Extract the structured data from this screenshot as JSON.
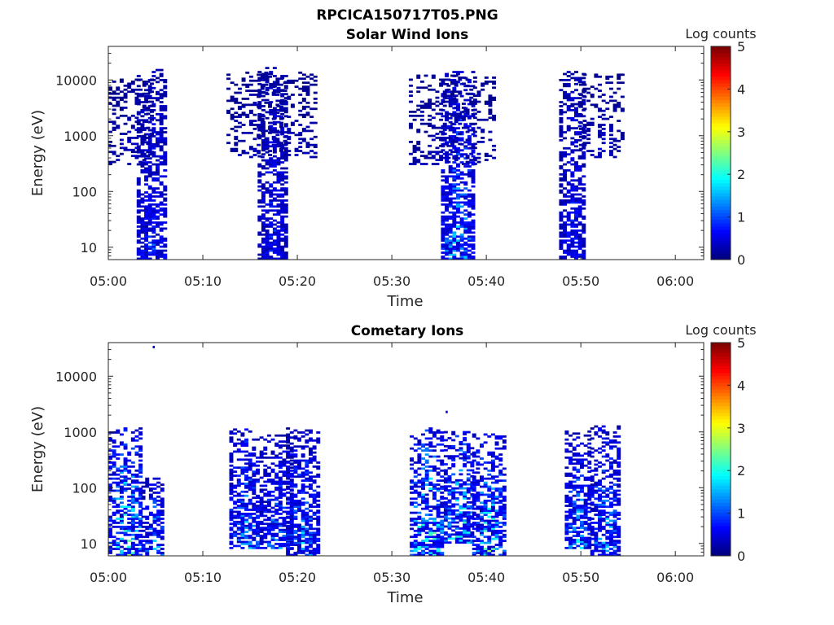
{
  "figure_title": "RPCICA150717T05.PNG",
  "chart_data": [
    {
      "type": "heatmap",
      "title": "Solar Wind Ions",
      "xlabel": "Time",
      "ylabel": "Energy (eV)",
      "x_ticks": [
        "05:00",
        "05:10",
        "05:20",
        "05:30",
        "05:40",
        "05:50",
        "06:00"
      ],
      "xlim": [
        "05:00",
        "06:03"
      ],
      "y_scale": "log",
      "y_ticks": [
        10,
        100,
        1000,
        10000
      ],
      "y_tick_labels": [
        "10",
        "100",
        "1000",
        "10000"
      ],
      "ylim": [
        6,
        40000
      ],
      "colorbar": {
        "label": "Log counts",
        "ticks": [
          "0",
          "1",
          "2",
          "3",
          "4",
          "5"
        ],
        "range": [
          0,
          5
        ],
        "colormap": "jet"
      },
      "grid": false,
      "bursts": [
        {
          "t": 3.0,
          "w": 3.2,
          "emin": 6,
          "emax": 15000,
          "peak_log": 1.2
        },
        {
          "t": 0.0,
          "w": 4.5,
          "emin": 300,
          "emax": 10000,
          "peak_log": 0.5
        },
        {
          "t": 15.8,
          "w": 3.0,
          "emin": 6,
          "emax": 16000,
          "peak_log": 1.1
        },
        {
          "t": 12.5,
          "w": 9.5,
          "emin": 400,
          "emax": 14000,
          "peak_log": 0.5
        },
        {
          "t": 35.2,
          "w": 3.3,
          "emin": 6,
          "emax": 14000,
          "peak_log": 2.2
        },
        {
          "t": 31.8,
          "w": 9.0,
          "emin": 300,
          "emax": 12000,
          "peak_log": 0.5
        },
        {
          "t": 47.7,
          "w": 2.6,
          "emin": 6,
          "emax": 14000,
          "peak_log": 1.1
        },
        {
          "t": 49.8,
          "w": 4.5,
          "emin": 400,
          "emax": 12000,
          "peak_log": 0.5
        }
      ]
    },
    {
      "type": "heatmap",
      "title": "Cometary Ions",
      "xlabel": "Time",
      "ylabel": "Energy (eV)",
      "x_ticks": [
        "05:00",
        "05:10",
        "05:20",
        "05:30",
        "05:40",
        "05:50",
        "06:00"
      ],
      "xlim": [
        "05:00",
        "06:03"
      ],
      "y_scale": "log",
      "y_ticks": [
        10,
        100,
        1000,
        10000
      ],
      "y_tick_labels": [
        "10",
        "100",
        "1000",
        "10000"
      ],
      "ylim": [
        6,
        40000
      ],
      "colorbar": {
        "label": "Log counts",
        "ticks": [
          "0",
          "1",
          "2",
          "3",
          "4",
          "5"
        ],
        "range": [
          0,
          5
        ],
        "colormap": "jet"
      },
      "grid": false,
      "bursts": [
        {
          "t": 0.0,
          "w": 3.5,
          "emin": 6,
          "emax": 1200,
          "peak_log": 3.0
        },
        {
          "t": 3.5,
          "w": 2.4,
          "emin": 6,
          "emax": 150,
          "peak_log": 2.0
        },
        {
          "t": 12.8,
          "w": 3.0,
          "emin": 8,
          "emax": 1100,
          "peak_log": 2.2
        },
        {
          "t": 16.0,
          "w": 3.2,
          "emin": 8,
          "emax": 900,
          "peak_log": 1.8
        },
        {
          "t": 18.8,
          "w": 3.2,
          "emin": 6,
          "emax": 1200,
          "peak_log": 2.0
        },
        {
          "t": 31.9,
          "w": 3.5,
          "emin": 6,
          "emax": 1200,
          "peak_log": 3.2
        },
        {
          "t": 35.5,
          "w": 3.0,
          "emin": 10,
          "emax": 1000,
          "peak_log": 3.0
        },
        {
          "t": 38.5,
          "w": 3.2,
          "emin": 6,
          "emax": 1000,
          "peak_log": 3.0
        },
        {
          "t": 48.3,
          "w": 2.6,
          "emin": 8,
          "emax": 1000,
          "peak_log": 2.2
        },
        {
          "t": 51.0,
          "w": 3.0,
          "emin": 6,
          "emax": 1300,
          "peak_log": 2.2
        }
      ],
      "outliers": [
        {
          "t": 4.7,
          "e": 35000,
          "log": 0.3
        },
        {
          "t": 35.7,
          "e": 2400,
          "log": 0.3
        }
      ]
    }
  ]
}
